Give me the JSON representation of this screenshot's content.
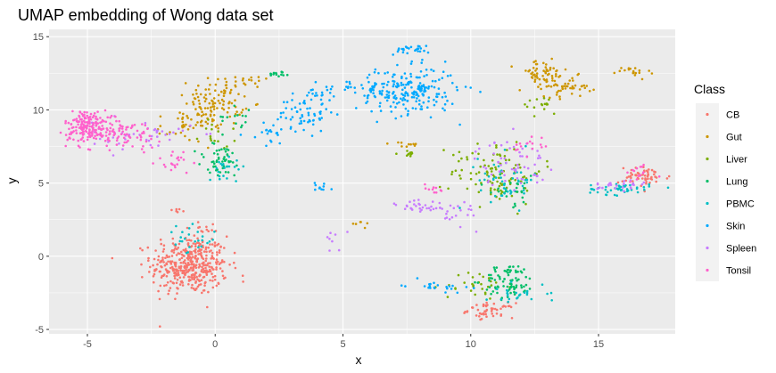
{
  "chart_data": {
    "type": "scatter",
    "title": "UMAP embedding of Wong data set",
    "xlabel": "x",
    "ylabel": "y",
    "xlim": [
      -6.5,
      18.0
    ],
    "ylim": [
      -5.3,
      15.5
    ],
    "x_ticks": [
      -5,
      0,
      5,
      10,
      15
    ],
    "y_ticks": [
      -5,
      0,
      5,
      10,
      15
    ],
    "x_tick_labels": [
      "-5",
      "0",
      "5",
      "10",
      "15"
    ],
    "y_tick_labels": [
      "-5",
      "0",
      "5",
      "10",
      "15"
    ],
    "grid": true,
    "legend": {
      "title": "Class",
      "position": "right",
      "entries": [
        "CB",
        "Gut",
        "Liver",
        "Lung",
        "PBMC",
        "Skin",
        "Spleen",
        "Tonsil"
      ]
    },
    "series": [
      {
        "name": "CB",
        "color": "#F8766D",
        "clusters": [
          {
            "cx": -1.0,
            "cy": -0.6,
            "sx": 0.75,
            "sy": 1.0,
            "n": 420
          },
          {
            "cx": 10.8,
            "cy": -3.7,
            "sx": 0.45,
            "sy": 0.25,
            "n": 50
          },
          {
            "cx": 16.8,
            "cy": 5.4,
            "sx": 0.5,
            "sy": 0.35,
            "n": 55
          },
          {
            "cx": -1.5,
            "cy": 3.3,
            "sx": 0.15,
            "sy": 0.2,
            "n": 6
          },
          {
            "cx": -0.3,
            "cy": 2.0,
            "sx": 0.2,
            "sy": 0.2,
            "n": 8
          }
        ]
      },
      {
        "name": "Gut",
        "color": "#CD9600",
        "clusters": [
          {
            "cx": 0.0,
            "cy": 10.5,
            "sx": 0.55,
            "sy": 0.8,
            "n": 110
          },
          {
            "cx": -1.2,
            "cy": 8.8,
            "sx": 0.5,
            "sy": 0.5,
            "n": 35
          },
          {
            "cx": 12.8,
            "cy": 12.4,
            "sx": 0.5,
            "sy": 0.5,
            "n": 60
          },
          {
            "cx": 13.8,
            "cy": 11.6,
            "sx": 0.45,
            "sy": 0.35,
            "n": 45
          },
          {
            "cx": 16.2,
            "cy": 12.5,
            "sx": 0.4,
            "sy": 0.25,
            "n": 18
          },
          {
            "cx": 1.3,
            "cy": 12.0,
            "sx": 0.4,
            "sy": 0.2,
            "n": 14
          },
          {
            "cx": 7.5,
            "cy": 7.6,
            "sx": 0.3,
            "sy": 0.1,
            "n": 10
          },
          {
            "cx": 5.7,
            "cy": 2.3,
            "sx": 0.3,
            "sy": 0.2,
            "n": 6
          }
        ]
      },
      {
        "name": "Liver",
        "color": "#7CAE00",
        "clusters": [
          {
            "cx": 11.0,
            "cy": 5.8,
            "sx": 0.9,
            "sy": 1.1,
            "n": 110
          },
          {
            "cx": 10.2,
            "cy": -2.0,
            "sx": 0.6,
            "sy": 0.5,
            "n": 30
          },
          {
            "cx": 12.9,
            "cy": 10.3,
            "sx": 0.25,
            "sy": 0.3,
            "n": 15
          },
          {
            "cx": 7.3,
            "cy": 7.0,
            "sx": 0.3,
            "sy": 0.2,
            "n": 10
          },
          {
            "cx": 0.2,
            "cy": 8.3,
            "sx": 0.4,
            "sy": 0.5,
            "n": 15
          }
        ]
      },
      {
        "name": "Lung",
        "color": "#00BE67",
        "clusters": [
          {
            "cx": 0.2,
            "cy": 6.5,
            "sx": 0.5,
            "sy": 0.6,
            "n": 50
          },
          {
            "cx": 11.5,
            "cy": -1.7,
            "sx": 0.5,
            "sy": 0.6,
            "n": 80
          },
          {
            "cx": 2.5,
            "cy": 12.5,
            "sx": 0.2,
            "sy": 0.1,
            "n": 14
          },
          {
            "cx": 0.9,
            "cy": 9.5,
            "sx": 0.3,
            "sy": 0.5,
            "n": 15
          },
          {
            "cx": 11.5,
            "cy": 4.5,
            "sx": 0.6,
            "sy": 0.5,
            "n": 25
          }
        ]
      },
      {
        "name": "PBMC",
        "color": "#00BFC4",
        "clusters": [
          {
            "cx": 15.8,
            "cy": 4.6,
            "sx": 0.6,
            "sy": 0.2,
            "n": 45
          },
          {
            "cx": 11.5,
            "cy": 5.2,
            "sx": 0.6,
            "sy": 0.9,
            "n": 50
          },
          {
            "cx": 0.5,
            "cy": 6.2,
            "sx": 0.4,
            "sy": 0.4,
            "n": 20
          },
          {
            "cx": -1.0,
            "cy": 1.0,
            "sx": 0.5,
            "sy": 0.5,
            "n": 25
          },
          {
            "cx": 11.8,
            "cy": -2.5,
            "sx": 0.6,
            "sy": 0.4,
            "n": 25
          }
        ]
      },
      {
        "name": "Skin",
        "color": "#00A9FF",
        "clusters": [
          {
            "cx": 7.5,
            "cy": 11.3,
            "sx": 1.0,
            "sy": 0.8,
            "n": 230
          },
          {
            "cx": 7.6,
            "cy": 14.1,
            "sx": 0.4,
            "sy": 0.15,
            "n": 25
          },
          {
            "cx": 3.5,
            "cy": 9.7,
            "sx": 0.5,
            "sy": 0.6,
            "n": 55
          },
          {
            "cx": 4.0,
            "cy": 11.2,
            "sx": 0.3,
            "sy": 0.4,
            "n": 22
          },
          {
            "cx": 2.2,
            "cy": 8.4,
            "sx": 0.4,
            "sy": 0.4,
            "n": 20
          },
          {
            "cx": 8.6,
            "cy": -2.0,
            "sx": 0.6,
            "sy": 0.2,
            "n": 22
          },
          {
            "cx": 4.2,
            "cy": 4.7,
            "sx": 0.2,
            "sy": 0.2,
            "n": 10
          },
          {
            "cx": 5.2,
            "cy": 11.7,
            "sx": 0.2,
            "sy": 0.2,
            "n": 6
          }
        ]
      },
      {
        "name": "Spleen",
        "color": "#C77CFF",
        "clusters": [
          {
            "cx": 11.6,
            "cy": 6.4,
            "sx": 0.7,
            "sy": 0.8,
            "n": 60
          },
          {
            "cx": 8.0,
            "cy": 3.4,
            "sx": 0.5,
            "sy": 0.3,
            "n": 30
          },
          {
            "cx": 15.7,
            "cy": 4.8,
            "sx": 0.6,
            "sy": 0.3,
            "n": 25
          },
          {
            "cx": 9.7,
            "cy": 3.0,
            "sx": 0.4,
            "sy": 0.5,
            "n": 20
          },
          {
            "cx": -2.8,
            "cy": 8.2,
            "sx": 1.0,
            "sy": 0.5,
            "n": 40
          },
          {
            "cx": 4.6,
            "cy": 1.2,
            "sx": 0.2,
            "sy": 0.4,
            "n": 8
          }
        ]
      },
      {
        "name": "Tonsil",
        "color": "#FF61CC",
        "clusters": [
          {
            "cx": -5.0,
            "cy": 8.9,
            "sx": 0.45,
            "sy": 0.55,
            "n": 160
          },
          {
            "cx": -3.7,
            "cy": 8.4,
            "sx": 0.8,
            "sy": 0.5,
            "n": 90
          },
          {
            "cx": -1.5,
            "cy": 6.5,
            "sx": 0.4,
            "sy": 0.4,
            "n": 20
          },
          {
            "cx": 8.5,
            "cy": 4.6,
            "sx": 0.3,
            "sy": 0.2,
            "n": 10
          },
          {
            "cx": 12.3,
            "cy": 7.5,
            "sx": 0.3,
            "sy": 0.5,
            "n": 15
          },
          {
            "cx": 16.6,
            "cy": 5.7,
            "sx": 0.3,
            "sy": 0.3,
            "n": 15
          }
        ]
      }
    ]
  }
}
